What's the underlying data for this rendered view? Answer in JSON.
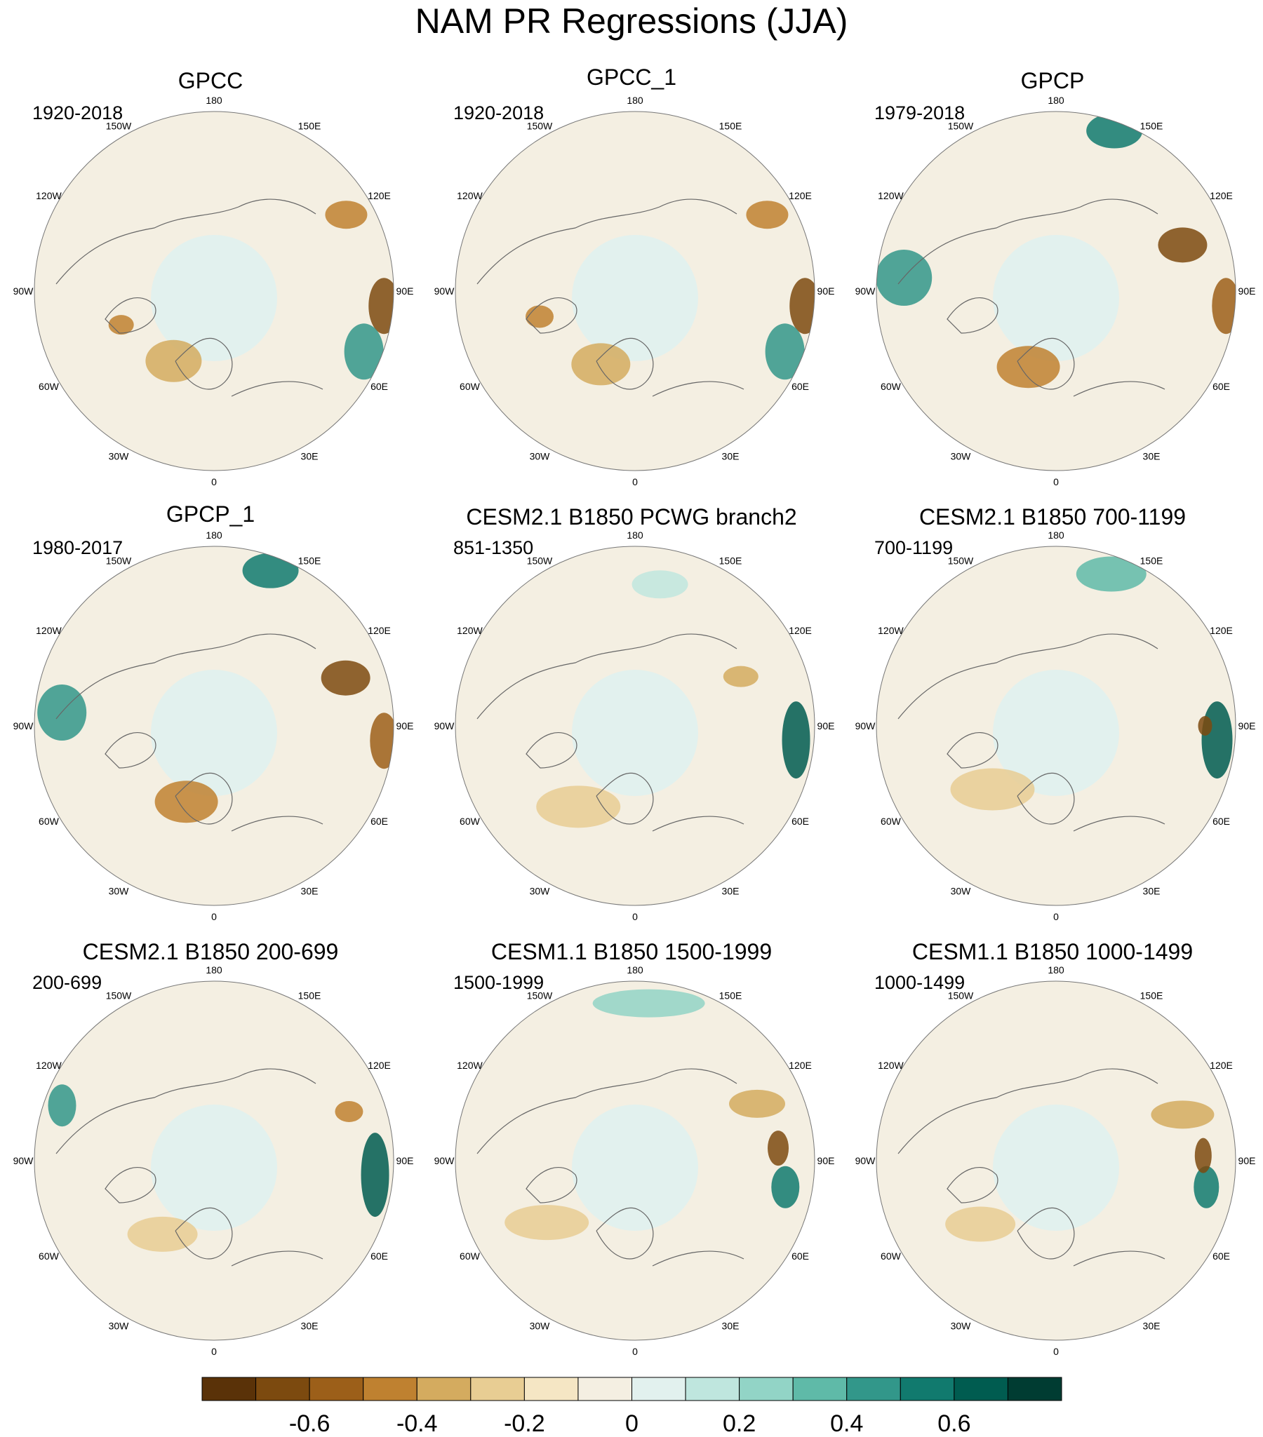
{
  "title": "NAM PR Regressions (JJA)",
  "lon_labels": {
    "l180": "180",
    "l150E": "150E",
    "l120E": "120E",
    "l90E": "90E",
    "l60E": "60E",
    "l30E": "30E",
    "l0": "0",
    "l30W": "30W",
    "l60W": "60W",
    "l90W": "90W",
    "l120W": "120W",
    "l150W": "150W"
  },
  "panels": [
    {
      "title": "GPCC",
      "period": "1920-2018"
    },
    {
      "title": "GPCC_1",
      "period": "1920-2018"
    },
    {
      "title": "GPCP",
      "period": "1979-2018"
    },
    {
      "title": "GPCP_1",
      "period": "1980-2017"
    },
    {
      "title": "CESM2.1 B1850 PCWG branch2",
      "period": "851-1350"
    },
    {
      "title": "CESM2.1 B1850 700-1199",
      "period": "700-1199"
    },
    {
      "title": "CESM2.1 B1850 200-699",
      "period": "200-699"
    },
    {
      "title": "CESM1.1 B1850 1500-1999",
      "period": "1500-1999"
    },
    {
      "title": "CESM1.1 B1850 1000-1499",
      "period": "1000-1499"
    }
  ],
  "colorbar": {
    "colors": [
      "#5a3208",
      "#7c4a0f",
      "#9c5f19",
      "#bf8130",
      "#d4ab5f",
      "#e8cd93",
      "#f5e6c4",
      "#f4efe2",
      "#e2f1ee",
      "#bfe6de",
      "#92d4c6",
      "#5fbaa8",
      "#32978a",
      "#117a6e",
      "#005c50",
      "#003c32"
    ],
    "tick_labels": [
      "-0.6",
      "-0.4",
      "-0.2",
      "0",
      "0.2",
      "0.4",
      "0.6"
    ]
  }
}
